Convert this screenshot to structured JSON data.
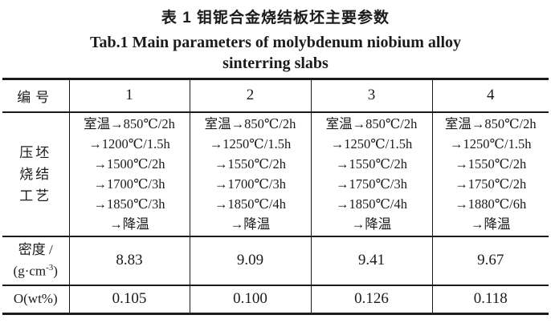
{
  "title": {
    "zh": "表 1  钼铌合金烧结板坯主要参数",
    "en_line1": "Tab.1  Main parameters of molybdenum niobium alloy",
    "en_line2": "sinterring slabs"
  },
  "table": {
    "header": {
      "label": "编号",
      "columns": [
        "1",
        "2",
        "3",
        "4"
      ]
    },
    "process": {
      "label_lines": [
        "压坯",
        "烧结",
        "工艺"
      ],
      "columns": [
        [
          "室温→850℃/2h",
          "→1200℃/1.5h",
          "→1500℃/2h",
          "→1700℃/3h",
          "→1850℃/3h",
          "→降温"
        ],
        [
          "室温→850℃/2h",
          "→1250℃/1.5h",
          "→1550℃/2h",
          "→1700℃/3h",
          "→1850℃/4h",
          "→降温"
        ],
        [
          "室温→850℃/2h",
          "→1250℃/1.5h",
          "→1550℃/2h",
          "→1750℃/3h",
          "→1850℃/4h",
          "→降温"
        ],
        [
          "室温→850℃/2h",
          "→1250℃/1.5h",
          "→1550℃/2h",
          "→1750℃/2h",
          "→1880℃/6h",
          "→降温"
        ]
      ]
    },
    "density": {
      "label_line1": "密度 /",
      "label_line2_pre": "(g·cm",
      "label_sup": "-3",
      "label_line2_post": ")",
      "values": [
        "8.83",
        "9.09",
        "9.41",
        "9.67"
      ]
    },
    "oxygen": {
      "label": "O(wt%)",
      "values": [
        "0.105",
        "0.100",
        "0.126",
        "0.118"
      ]
    }
  },
  "colors": {
    "text": "#1b1b1b",
    "border": "#1b1b1b",
    "background": "#ffffff"
  }
}
